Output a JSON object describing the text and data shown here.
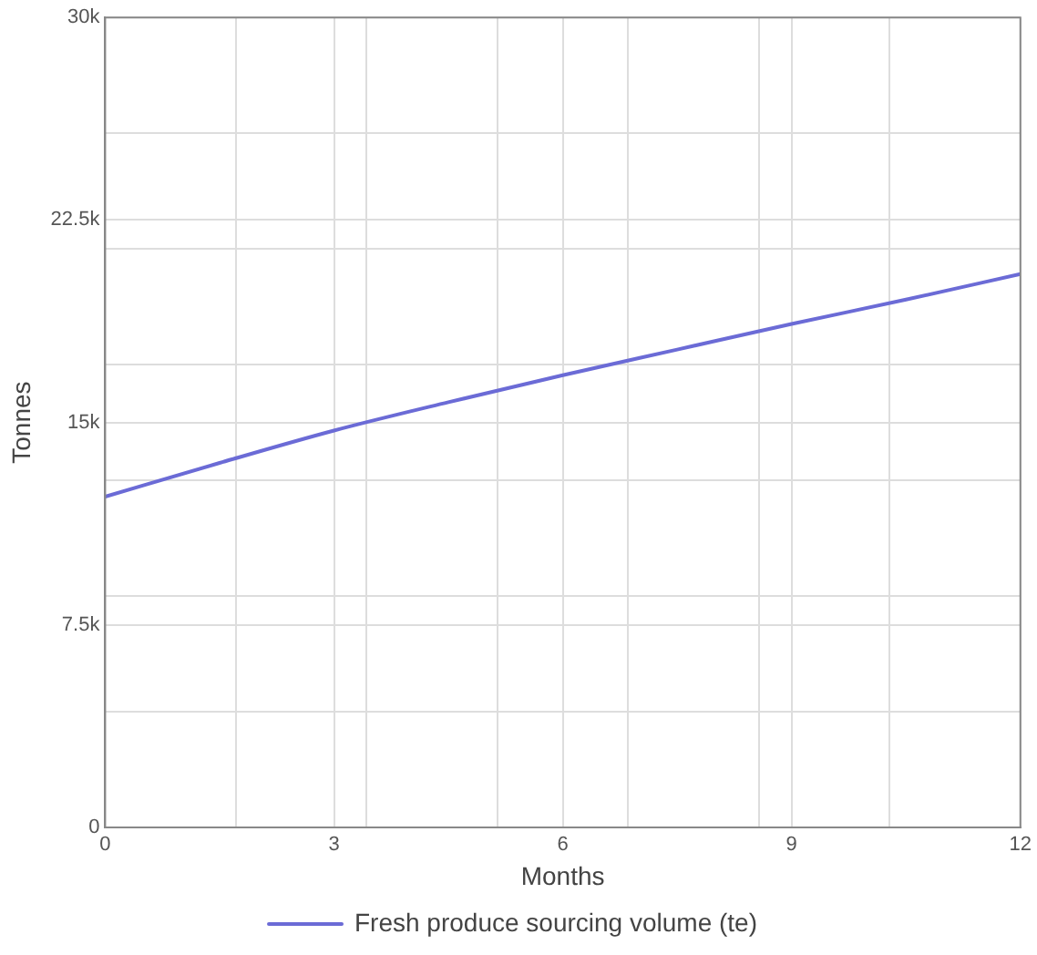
{
  "chart_data": {
    "type": "line",
    "xlabel": "Months",
    "ylabel": "Tonnes",
    "x": [
      0,
      1.5,
      3,
      4.5,
      6,
      7.5,
      9,
      10.5,
      12
    ],
    "series": [
      {
        "name": "Fresh produce sourcing volume (te)",
        "color": "#6b6bd6",
        "values": [
          12250,
          13500,
          14700,
          15750,
          16750,
          17700,
          18650,
          19550,
          20500
        ]
      }
    ],
    "xlim": [
      0,
      12
    ],
    "xticks": [
      0,
      {
        "value": 1.714,
        "label": null
      },
      3,
      {
        "value": 3.429,
        "label": null
      },
      {
        "value": 5.143,
        "label": null
      },
      6,
      {
        "value": 6.857,
        "label": null
      },
      {
        "value": 8.571,
        "label": null
      },
      9,
      {
        "value": 10.286,
        "label": null
      },
      12
    ],
    "ylim": [
      0,
      30000
    ],
    "yticks": [
      0,
      {
        "value": 4286,
        "label": null
      },
      {
        "value": 7500,
        "label": "7.5k"
      },
      {
        "value": 8571,
        "label": null
      },
      {
        "value": 12857,
        "label": null
      },
      {
        "value": 15000,
        "label": "15k"
      },
      {
        "value": 17143,
        "label": null
      },
      {
        "value": 21429,
        "label": null
      },
      {
        "value": 22500,
        "label": "22.5k"
      },
      {
        "value": 25714,
        "label": null
      },
      {
        "value": 30000,
        "label": "30k"
      }
    ],
    "grid": true,
    "legend": "bottom",
    "marker": "none",
    "line_style": "solid"
  }
}
